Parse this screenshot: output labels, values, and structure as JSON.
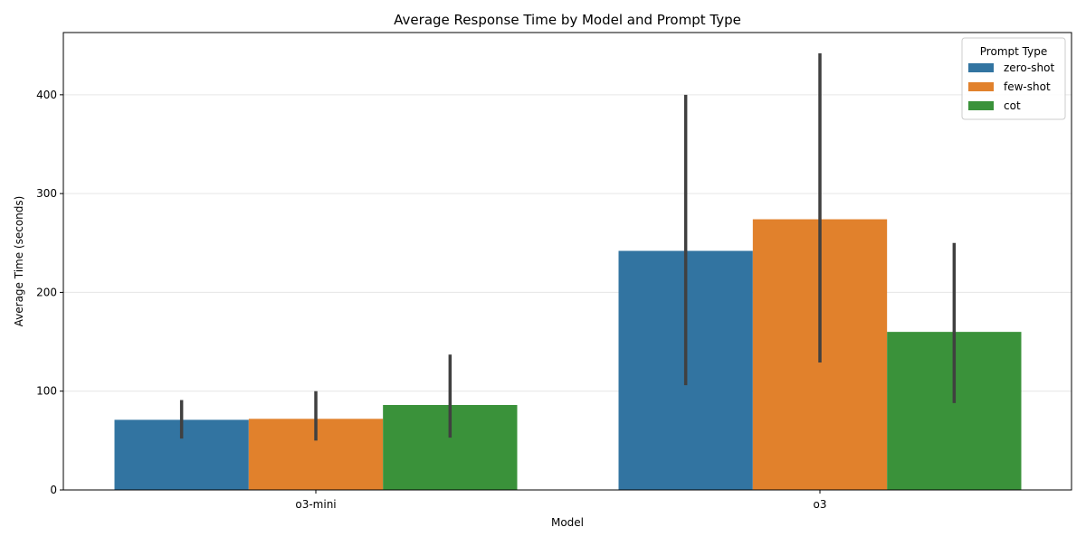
{
  "chart_data": {
    "type": "bar",
    "title": "Average Response Time by Model and Prompt Type",
    "xlabel": "Model",
    "ylabel": "Average Time (seconds)",
    "categories": [
      "o3-mini",
      "o3"
    ],
    "ylim": [
      0,
      463
    ],
    "yticks": [
      0,
      100,
      200,
      300,
      400
    ],
    "grid": "y",
    "legend": {
      "title": "Prompt Type",
      "placement": "top-right"
    },
    "error_bar_color": "#404040",
    "series": [
      {
        "name": "zero-shot",
        "color": "#3274a1",
        "values": [
          71,
          242
        ],
        "error_low": [
          52,
          106
        ],
        "error_high": [
          91,
          400
        ]
      },
      {
        "name": "few-shot",
        "color": "#e1812c",
        "values": [
          72,
          274
        ],
        "error_low": [
          50,
          129
        ],
        "error_high": [
          100,
          442
        ]
      },
      {
        "name": "cot",
        "color": "#3a923a",
        "values": [
          86,
          160
        ],
        "error_low": [
          53,
          88
        ],
        "error_high": [
          137,
          250
        ]
      }
    ]
  }
}
